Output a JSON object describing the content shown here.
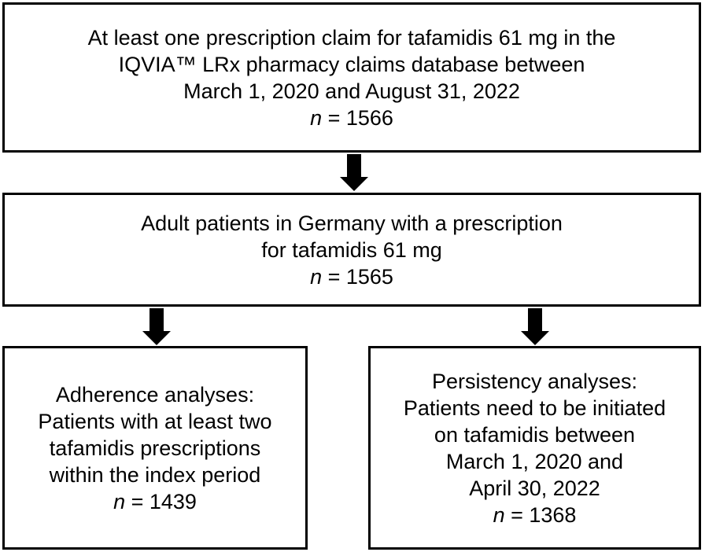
{
  "boxes": {
    "top": {
      "lines": [
        "At least one prescription claim for tafamidis 61 mg in the",
        "IQVIA™ LRx pharmacy claims database between",
        "March 1, 2020 and August 31, 2022"
      ],
      "n_var": "n",
      "n_value": " = 1566"
    },
    "middle": {
      "lines": [
        "Adult patients in Germany with a prescription",
        "for tafamidis 61 mg"
      ],
      "n_var": "n",
      "n_value": " = 1565"
    },
    "left": {
      "lines": [
        "Adherence analyses:",
        "Patients with at least two",
        "tafamidis prescriptions",
        "within the index period"
      ],
      "n_var": "n",
      "n_value": " = 1439"
    },
    "right": {
      "lines": [
        "Persistency analyses:",
        "Patients need to be initiated",
        "on tafamidis between",
        "March 1, 2020 and",
        "April 30, 2022"
      ],
      "n_var": "n",
      "n_value": " = 1368"
    }
  }
}
